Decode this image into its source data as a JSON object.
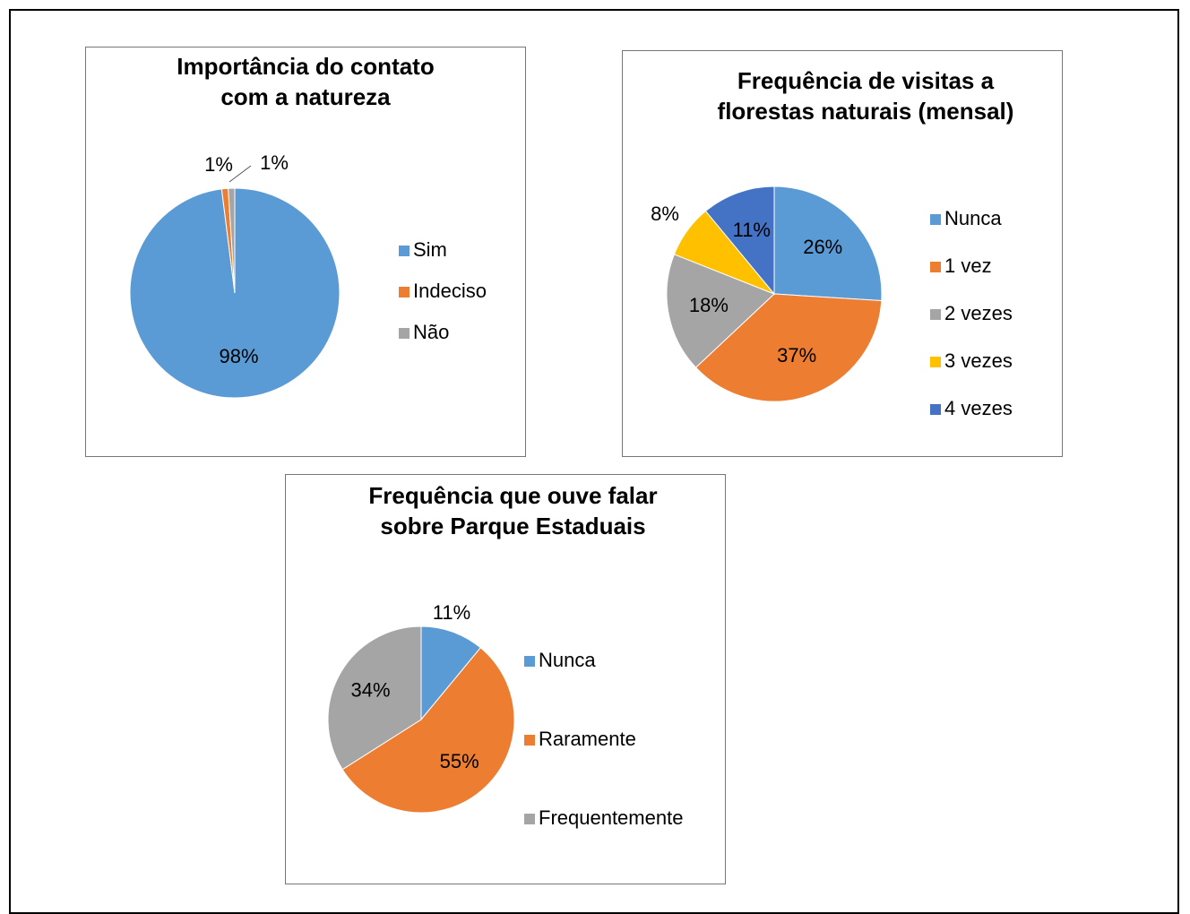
{
  "chart_data": [
    {
      "type": "pie",
      "title": "Importância do contato com a natureza",
      "categories": [
        "Sim",
        "Indeciso",
        "Não"
      ],
      "values": [
        98,
        1,
        1
      ],
      "value_labels": [
        "98%",
        "1%",
        "1%"
      ],
      "colors": [
        "#5b9bd5",
        "#ed7d31",
        "#a5a5a5"
      ],
      "legend": "right"
    },
    {
      "type": "pie",
      "title": "Frequência de visitas a florestas naturais (mensal)",
      "categories": [
        "Nunca",
        "1 vez",
        "2 vezes",
        "3 vezes",
        "4 vezes"
      ],
      "values": [
        26,
        37,
        18,
        8,
        11
      ],
      "value_labels": [
        "26%",
        "37%",
        "18%",
        "8%",
        "11%"
      ],
      "colors": [
        "#5b9bd5",
        "#ed7d31",
        "#a5a5a5",
        "#ffc000",
        "#4472c4"
      ],
      "legend": "right"
    },
    {
      "type": "pie",
      "title": "Frequência que ouve falar sobre Parque Estaduais",
      "categories": [
        "Nunca",
        "Raramente",
        "Frequentemente"
      ],
      "values": [
        11,
        55,
        34
      ],
      "value_labels": [
        "11%",
        "55%",
        "34%"
      ],
      "colors": [
        "#5b9bd5",
        "#ed7d31",
        "#a5a5a5"
      ],
      "legend": "right"
    }
  ]
}
